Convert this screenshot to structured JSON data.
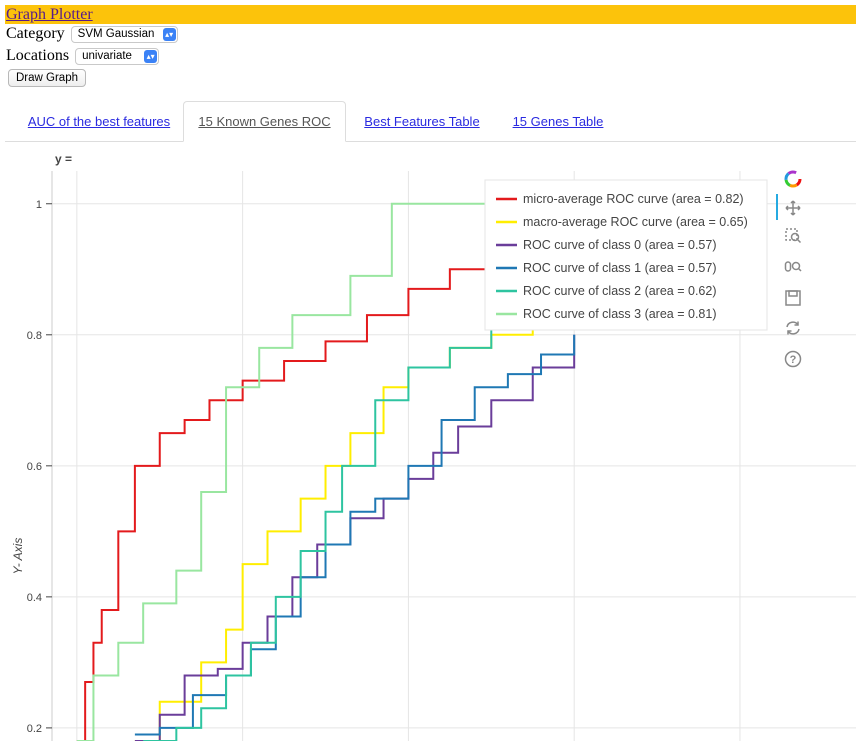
{
  "header": {
    "title": "Graph Plotter"
  },
  "controls": {
    "category_label": "Category",
    "category_value": "SVM Gaussian",
    "locations_label": "Locations",
    "locations_value": "univariate",
    "draw_button": "Draw Graph"
  },
  "tabs": [
    {
      "label": "AUC of the best features",
      "active": false
    },
    {
      "label": "15 Known Genes ROC",
      "active": true
    },
    {
      "label": "Best Features Table",
      "active": false
    },
    {
      "label": "15 Genes Table",
      "active": false
    }
  ],
  "chart_data": {
    "type": "line",
    "title": "y =",
    "ylabel": "Y- Axis",
    "xlabel": "",
    "grid": true,
    "legend_position": "top-right",
    "ylim": [
      0.18,
      1.05
    ],
    "xlim": [
      -0.03,
      0.94
    ],
    "yticks": [
      0.2,
      0.4,
      0.6,
      0.8,
      1
    ],
    "ytick_labels": [
      "0.2",
      "0.4",
      "0.6",
      "0.8",
      "1"
    ],
    "series": [
      {
        "name": "micro-average ROC curve (area = 0.82)",
        "color": "#e31a1c",
        "x": [
          0,
          0.01,
          0.02,
          0.03,
          0.05,
          0.07,
          0.1,
          0.13,
          0.16,
          0.2,
          0.25,
          0.3,
          0.35,
          0.4,
          0.45,
          0.5,
          0.55
        ],
        "y": [
          0.18,
          0.27,
          0.33,
          0.38,
          0.5,
          0.6,
          0.65,
          0.67,
          0.7,
          0.73,
          0.76,
          0.79,
          0.83,
          0.87,
          0.9,
          0.93,
          0.94
        ]
      },
      {
        "name": "macro-average ROC curve (area = 0.65)",
        "color": "#ffee00",
        "x": [
          0.07,
          0.1,
          0.15,
          0.18,
          0.2,
          0.23,
          0.27,
          0.3,
          0.33,
          0.37,
          0.4,
          0.45,
          0.5,
          0.55
        ],
        "y": [
          0.18,
          0.24,
          0.3,
          0.35,
          0.45,
          0.5,
          0.55,
          0.6,
          0.65,
          0.72,
          0.75,
          0.78,
          0.8,
          0.82
        ]
      },
      {
        "name": "ROC curve of class 0 (area = 0.57)",
        "color": "#6a3d9a",
        "x": [
          0.07,
          0.1,
          0.13,
          0.17,
          0.2,
          0.23,
          0.26,
          0.29,
          0.33,
          0.37,
          0.4,
          0.43,
          0.46,
          0.5,
          0.55,
          0.6
        ],
        "y": [
          0.18,
          0.22,
          0.28,
          0.29,
          0.33,
          0.37,
          0.43,
          0.48,
          0.52,
          0.55,
          0.58,
          0.62,
          0.66,
          0.7,
          0.75,
          0.8
        ]
      },
      {
        "name": "ROC curve of class 1 (area = 0.57)",
        "color": "#1f78b4",
        "x": [
          0.07,
          0.1,
          0.14,
          0.18,
          0.21,
          0.24,
          0.27,
          0.3,
          0.33,
          0.36,
          0.4,
          0.44,
          0.48,
          0.52,
          0.56,
          0.6
        ],
        "y": [
          0.19,
          0.2,
          0.25,
          0.28,
          0.32,
          0.37,
          0.43,
          0.48,
          0.53,
          0.55,
          0.6,
          0.67,
          0.72,
          0.74,
          0.77,
          0.8
        ]
      },
      {
        "name": "ROC curve of class 2 (area = 0.62)",
        "color": "#2ec4a0",
        "x": [
          0.08,
          0.12,
          0.15,
          0.18,
          0.21,
          0.24,
          0.27,
          0.3,
          0.32,
          0.36,
          0.4,
          0.45,
          0.5,
          0.55,
          0.6
        ],
        "y": [
          0.18,
          0.2,
          0.23,
          0.28,
          0.33,
          0.4,
          0.47,
          0.53,
          0.6,
          0.7,
          0.75,
          0.78,
          0.83,
          0.86,
          0.88
        ]
      },
      {
        "name": "ROC curve of class 3 (area = 0.81)",
        "color": "#99e6a0",
        "x": [
          0,
          0.02,
          0.05,
          0.08,
          0.12,
          0.15,
          0.18,
          0.22,
          0.26,
          0.29,
          0.33,
          0.38,
          0.43,
          0.5,
          0.55
        ],
        "y": [
          0.18,
          0.28,
          0.33,
          0.39,
          0.44,
          0.56,
          0.72,
          0.78,
          0.83,
          0.83,
          0.89,
          1.0,
          1.0,
          1.0,
          1.0
        ]
      }
    ]
  },
  "toolbar": {
    "icons": [
      "bokeh-logo-icon",
      "pan-icon",
      "box-zoom-icon",
      "wheel-zoom-icon",
      "save-icon",
      "reset-icon",
      "help-icon"
    ]
  }
}
